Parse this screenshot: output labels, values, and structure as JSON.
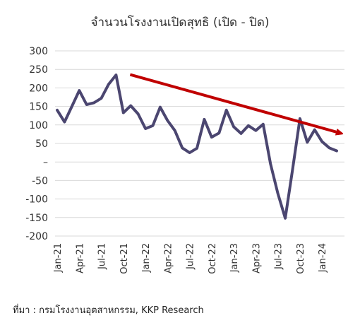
{
  "chart_data": {
    "type": "line",
    "title": "จำนวนโรงงานเปิดสุทธิ (เปิด - ปิด)",
    "source": "ที่มา : กรมโรงงานอุตสาหกรรม, KKP Research",
    "ylim": [
      -200,
      300
    ],
    "y_ticks": [
      300,
      250,
      200,
      150,
      100,
      50,
      0,
      -50,
      -100,
      -150,
      -200
    ],
    "y_tick_labels": [
      "300",
      "250",
      "200",
      "150",
      "100",
      "50",
      "–",
      "-50",
      "-100",
      "-150",
      "-200"
    ],
    "x_tick_labels": [
      "Jan-21",
      "Apr-21",
      "Jul-21",
      "Oct-21",
      "Jan-22",
      "Apr-22",
      "Jul-22",
      "Oct-22",
      "Jan-23",
      "Apr-23",
      "Jul-23",
      "Oct-23",
      "Jan-24"
    ],
    "x": [
      "Jan-21",
      "Feb-21",
      "Mar-21",
      "Apr-21",
      "May-21",
      "Jun-21",
      "Jul-21",
      "Aug-21",
      "Sep-21",
      "Oct-21",
      "Nov-21",
      "Dec-21",
      "Jan-22",
      "Feb-22",
      "Mar-22",
      "Apr-22",
      "May-22",
      "Jun-22",
      "Jul-22",
      "Aug-22",
      "Sep-22",
      "Oct-22",
      "Nov-22",
      "Dec-22",
      "Jan-23",
      "Feb-23",
      "Mar-23",
      "Apr-23",
      "May-23",
      "Jun-23",
      "Jul-23",
      "Aug-23",
      "Sep-23",
      "Oct-23",
      "Nov-23",
      "Dec-23",
      "Jan-24",
      "Feb-24",
      "Mar-24"
    ],
    "series": [
      {
        "color": "#4b4670",
        "values": [
          140,
          108,
          150,
          193,
          155,
          160,
          172,
          210,
          235,
          133,
          152,
          130,
          90,
          98,
          148,
          112,
          85,
          38,
          25,
          37,
          115,
          67,
          78,
          140,
          95,
          77,
          98,
          85,
          102,
          -5,
          -85,
          -152,
          -20,
          117,
          53,
          87,
          55,
          38,
          30
        ]
      }
    ],
    "trend_arrow": {
      "color": "#c00000",
      "from": [
        "Sep-21",
        236
      ],
      "to": [
        "Mar-24",
        78
      ]
    },
    "grid": true
  }
}
